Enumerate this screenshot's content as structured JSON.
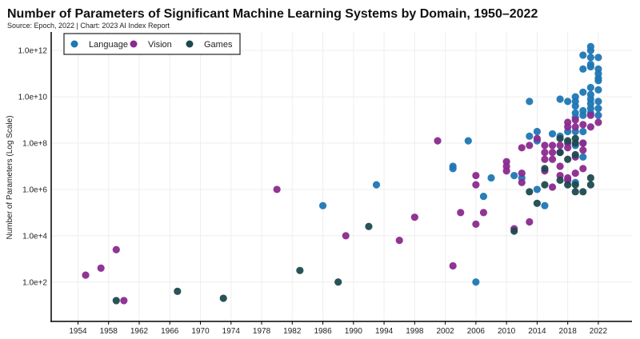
{
  "chart_data": {
    "type": "scatter",
    "title": "Number of Parameters of Significant Machine Learning Systems by Domain, 1950–2022",
    "subtitle": "Source: Epoch, 2022 | Chart: 2023 AI Index Report",
    "xlabel": "",
    "ylabel": "Number of Parameters (Log Scale)",
    "y_scale": "log10",
    "x_ticks": [
      "1954",
      "1958",
      "1962",
      "1966",
      "1970",
      "1974",
      "1978",
      "1982",
      "1986",
      "1990",
      "1994",
      "1998",
      "2002",
      "2006",
      "2010",
      "2014",
      "2018",
      "2022"
    ],
    "y_ticks": [
      {
        "log": 2,
        "label": "1.0e+2"
      },
      {
        "log": 4,
        "label": "1.0e+4"
      },
      {
        "log": 6,
        "label": "1.0e+6"
      },
      {
        "log": 8,
        "label": "1.0e+8"
      },
      {
        "log": 10,
        "label": "1.0e+10"
      },
      {
        "log": 12,
        "label": "1.0e+12"
      }
    ],
    "xlim": [
      1950.5,
      2026.4
    ],
    "ylim_log10": [
      0.3,
      12.8
    ],
    "grid": true,
    "legend_position": "top-left",
    "point_format": "[year, log10(parameters)]",
    "series": [
      {
        "name": "Language",
        "color": "#1f77b4",
        "points": [
          [
            1986,
            5.3
          ],
          [
            1993,
            6.2
          ],
          [
            2003,
            7.0
          ],
          [
            2003,
            6.9
          ],
          [
            2005,
            8.1
          ],
          [
            2006,
            2.0
          ],
          [
            2007,
            5.7
          ],
          [
            2008,
            6.5
          ],
          [
            2011,
            6.6
          ],
          [
            2012,
            6.5
          ],
          [
            2013,
            9.8
          ],
          [
            2013,
            8.3
          ],
          [
            2014,
            8.5
          ],
          [
            2014,
            8.1
          ],
          [
            2014,
            6.0
          ],
          [
            2015,
            5.3
          ],
          [
            2016,
            8.4
          ],
          [
            2017,
            9.9
          ],
          [
            2017,
            8.3
          ],
          [
            2018,
            9.8
          ],
          [
            2018,
            8.5
          ],
          [
            2019,
            10.0
          ],
          [
            2019,
            9.8
          ],
          [
            2019,
            9.6
          ],
          [
            2019,
            9.3
          ],
          [
            2019,
            9.1
          ],
          [
            2019,
            8.5
          ],
          [
            2019,
            7.9
          ],
          [
            2019,
            6.3
          ],
          [
            2020,
            11.8
          ],
          [
            2020,
            11.2
          ],
          [
            2020,
            10.2
          ],
          [
            2020,
            9.4
          ],
          [
            2020,
            9.2
          ],
          [
            2020,
            8.5
          ],
          [
            2020,
            8.0
          ],
          [
            2020,
            7.4
          ],
          [
            2021,
            12.17
          ],
          [
            2021,
            12.0
          ],
          [
            2021,
            11.7
          ],
          [
            2021,
            11.4
          ],
          [
            2021,
            11.3
          ],
          [
            2021,
            10.4
          ],
          [
            2021,
            10.1
          ],
          [
            2021,
            9.9
          ],
          [
            2021,
            9.7
          ],
          [
            2021,
            9.5
          ],
          [
            2021,
            9.3
          ],
          [
            2022,
            11.7
          ],
          [
            2022,
            11.2
          ],
          [
            2022,
            11.0
          ],
          [
            2022,
            10.8
          ],
          [
            2022,
            10.7
          ],
          [
            2022,
            10.3
          ],
          [
            2022,
            9.8
          ],
          [
            2022,
            9.5
          ],
          [
            2022,
            9.2
          ]
        ]
      },
      {
        "name": "Vision",
        "color": "#8b2a8f",
        "points": [
          [
            1955,
            2.3
          ],
          [
            1957,
            2.6
          ],
          [
            1959,
            3.4
          ],
          [
            1960,
            1.2
          ],
          [
            1980,
            6.0
          ],
          [
            1989,
            4.0
          ],
          [
            1996,
            3.8
          ],
          [
            1998,
            4.8
          ],
          [
            2001,
            8.1
          ],
          [
            2003,
            2.7
          ],
          [
            2004,
            5.0
          ],
          [
            2006,
            4.5
          ],
          [
            2006,
            6.2
          ],
          [
            2006,
            6.6
          ],
          [
            2007,
            5.0
          ],
          [
            2010,
            7.2
          ],
          [
            2010,
            7.0
          ],
          [
            2010,
            6.8
          ],
          [
            2011,
            4.3
          ],
          [
            2012,
            7.8
          ],
          [
            2012,
            6.7
          ],
          [
            2012,
            6.3
          ],
          [
            2013,
            7.9
          ],
          [
            2013,
            4.6
          ],
          [
            2014,
            8.2
          ],
          [
            2015,
            7.9
          ],
          [
            2015,
            7.6
          ],
          [
            2015,
            7.3
          ],
          [
            2015,
            6.8
          ],
          [
            2016,
            7.9
          ],
          [
            2016,
            7.6
          ],
          [
            2016,
            7.3
          ],
          [
            2016,
            6.1
          ],
          [
            2017,
            7.9
          ],
          [
            2017,
            7.6
          ],
          [
            2017,
            7.0
          ],
          [
            2017,
            6.6
          ],
          [
            2018,
            8.9
          ],
          [
            2018,
            8.7
          ],
          [
            2018,
            8.0
          ],
          [
            2018,
            7.8
          ],
          [
            2018,
            6.5
          ],
          [
            2018,
            6.4
          ],
          [
            2019,
            9.0
          ],
          [
            2019,
            8.7
          ],
          [
            2019,
            7.4
          ],
          [
            2019,
            6.7
          ],
          [
            2020,
            8.8
          ],
          [
            2020,
            8.0
          ],
          [
            2020,
            7.7
          ],
          [
            2020,
            6.9
          ],
          [
            2021,
            9.2
          ],
          [
            2021,
            8.7
          ],
          [
            2022,
            8.9
          ]
        ]
      },
      {
        "name": "Games",
        "color": "#1d4a4e",
        "points": [
          [
            1959,
            1.2
          ],
          [
            1967,
            1.6
          ],
          [
            1973,
            1.3
          ],
          [
            1983,
            2.5
          ],
          [
            1988,
            2.0
          ],
          [
            1992,
            4.4
          ],
          [
            2011,
            4.2
          ],
          [
            2013,
            5.9
          ],
          [
            2014,
            5.4
          ],
          [
            2015,
            6.9
          ],
          [
            2015,
            6.2
          ],
          [
            2017,
            8.2
          ],
          [
            2017,
            7.6
          ],
          [
            2017,
            6.4
          ],
          [
            2018,
            8.1
          ],
          [
            2018,
            7.3
          ],
          [
            2018,
            6.2
          ],
          [
            2019,
            8.2
          ],
          [
            2019,
            8.0
          ],
          [
            2019,
            7.5
          ],
          [
            2019,
            6.2
          ],
          [
            2019,
            5.9
          ],
          [
            2020,
            5.9
          ],
          [
            2021,
            6.5
          ],
          [
            2021,
            6.2
          ]
        ]
      }
    ]
  }
}
